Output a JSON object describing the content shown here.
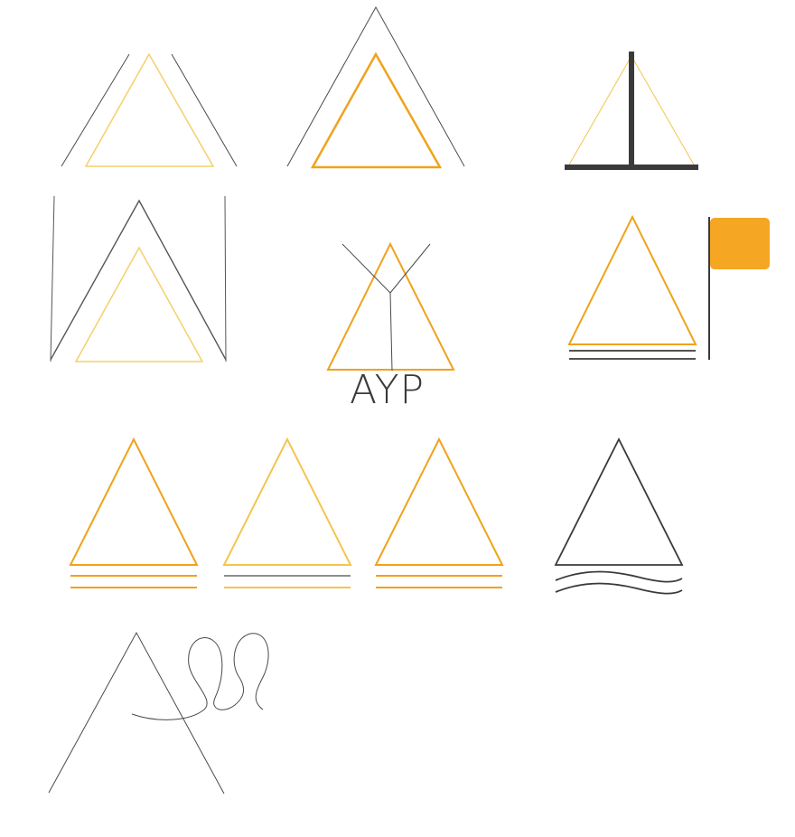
{
  "colors": {
    "background": "#ffffff",
    "orange": "#f5a623",
    "orange_deep": "#f0a21c",
    "yellow_light": "#f6cf6a",
    "yellow_mid": "#f4c44e",
    "dark": "#3a3a3a",
    "gray_line": "#555555",
    "gray_mid": "#8e8e8e"
  },
  "logo_variants": {
    "ayp_variant": {
      "text": "AYP"
    }
  },
  "icon_names": [
    "double-outline-peak-icon",
    "tall-outline-peak-icon",
    "mast-sail-icon",
    "framed-peak-icon",
    "tree-branch-triangle-icon",
    "flag-sail-icon",
    "double-underline-triangle-icon",
    "gray-yellow-underline-triangle-icon",
    "orange-underline-triangle-icon",
    "wave-sail-icon",
    "looped-line-peak-icon"
  ]
}
